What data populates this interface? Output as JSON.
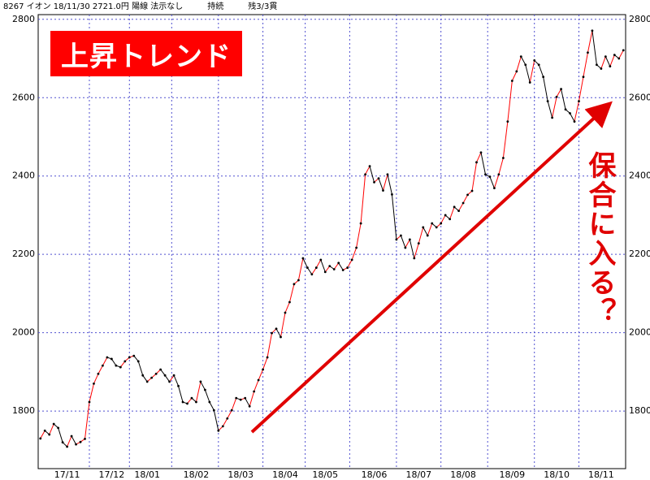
{
  "chart_data": {
    "type": "line",
    "header": "8267 イオン 18/11/30 2721.0円 陽線 法示なし　　　持続　　　残3/3貫",
    "annotation_title": "上昇トレンド",
    "annotation_side": "保合に入る？",
    "up_color": "#ff0000",
    "down_color": "#000000",
    "grid": true,
    "ylim": [
      1653,
      2812
    ],
    "yticks": [
      1800,
      2000,
      2200,
      2400,
      2600,
      2800
    ],
    "categories": [
      null,
      null,
      null,
      null,
      null,
      null,
      "17/11",
      null,
      null,
      null,
      null,
      null,
      null,
      null,
      null,
      null,
      "17/12",
      null,
      null,
      null,
      null,
      null,
      null,
      null,
      "18/01",
      null,
      null,
      null,
      null,
      null,
      null,
      null,
      null,
      null,
      null,
      "18/02",
      null,
      null,
      null,
      null,
      null,
      null,
      null,
      null,
      null,
      "18/03",
      null,
      null,
      null,
      null,
      null,
      null,
      null,
      null,
      null,
      "18/04",
      null,
      null,
      null,
      null,
      null,
      null,
      null,
      null,
      "18/05",
      null,
      null,
      null,
      null,
      null,
      null,
      null,
      null,
      null,
      null,
      "18/06",
      null,
      null,
      null,
      null,
      null,
      null,
      null,
      null,
      null,
      "18/07",
      null,
      null,
      null,
      null,
      null,
      null,
      null,
      null,
      null,
      "18/08",
      null,
      null,
      null,
      null,
      null,
      null,
      null,
      null,
      null,
      null,
      "18/09",
      null,
      null,
      null,
      null,
      null,
      null,
      null,
      null,
      null,
      "18/10",
      null,
      null,
      null,
      null,
      null,
      null,
      null,
      null,
      null,
      "18/11",
      null,
      null,
      null,
      null,
      null
    ],
    "values": [
      1730,
      1750,
      1740,
      1767,
      1757,
      1720,
      1709,
      1736,
      1715,
      1721,
      1729,
      1823,
      1870,
      1895,
      1916,
      1937,
      1933,
      1916,
      1912,
      1927,
      1937,
      1941,
      1927,
      1891,
      1875,
      1885,
      1895,
      1906,
      1891,
      1875,
      1891,
      1864,
      1823,
      1819,
      1833,
      1823,
      1875,
      1854,
      1823,
      1802,
      1750,
      1761,
      1781,
      1802,
      1833,
      1829,
      1833,
      1812,
      1850,
      1879,
      1906,
      1937,
      1999,
      2010,
      1989,
      2051,
      2078,
      2124,
      2134,
      2190,
      2166,
      2149,
      2166,
      2186,
      2155,
      2170,
      2162,
      2178,
      2160,
      2166,
      2186,
      2217,
      2279,
      2404,
      2425,
      2384,
      2394,
      2363,
      2404,
      2353,
      2238,
      2248,
      2217,
      2238,
      2190,
      2228,
      2269,
      2248,
      2279,
      2269,
      2279,
      2300,
      2290,
      2321,
      2311,
      2331,
      2352,
      2362,
      2435,
      2460,
      2404,
      2398,
      2369,
      2404,
      2446,
      2539,
      2643,
      2667,
      2705,
      2684,
      2639,
      2695,
      2684,
      2653,
      2591,
      2549,
      2602,
      2622,
      2570,
      2560,
      2539,
      2591,
      2653,
      2715,
      2771,
      2684,
      2674,
      2705,
      2680,
      2709,
      2700,
      2721
    ]
  }
}
